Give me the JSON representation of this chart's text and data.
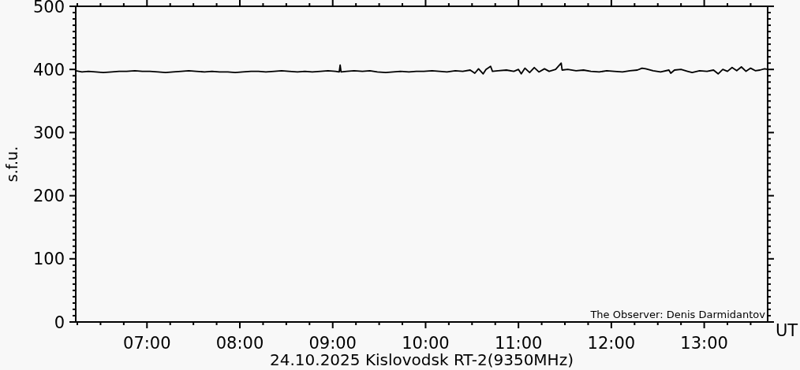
{
  "chart_data": {
    "type": "line",
    "title": "24.10.2025 Kislovodsk RT-2(9350MHz)",
    "xlabel": "UT",
    "ylabel": "s.f.u.",
    "annotations": [
      "The Observer: Denis Darmidantov"
    ],
    "x": [
      6.233,
      6.3,
      6.37,
      6.45,
      6.53,
      6.62,
      6.7,
      6.78,
      6.87,
      6.95,
      7.03,
      7.12,
      7.2,
      7.28,
      7.37,
      7.45,
      7.53,
      7.62,
      7.7,
      7.78,
      7.87,
      7.95,
      8.03,
      8.12,
      8.2,
      8.28,
      8.37,
      8.45,
      8.53,
      8.62,
      8.7,
      8.78,
      8.87,
      8.95,
      9.03,
      9.07,
      9.08,
      9.09,
      9.15,
      9.23,
      9.32,
      9.4,
      9.48,
      9.57,
      9.65,
      9.73,
      9.82,
      9.9,
      9.98,
      10.07,
      10.15,
      10.23,
      10.32,
      10.4,
      10.48,
      10.53,
      10.57,
      10.62,
      10.65,
      10.7,
      10.72,
      10.78,
      10.87,
      10.95,
      11.0,
      11.03,
      11.07,
      11.12,
      11.17,
      11.22,
      11.28,
      11.33,
      11.4,
      11.46,
      11.47,
      11.53,
      11.62,
      11.7,
      11.78,
      11.87,
      11.95,
      12.03,
      12.12,
      12.2,
      12.28,
      12.33,
      12.37,
      12.45,
      12.53,
      12.62,
      12.64,
      12.68,
      12.75,
      12.82,
      12.87,
      12.95,
      13.03,
      13.1,
      13.15,
      13.2,
      13.25,
      13.3,
      13.35,
      13.4,
      13.45,
      13.5,
      13.55,
      13.6,
      13.65,
      13.683
    ],
    "series": [
      {
        "color": "#000000",
        "values": [
          398,
          396,
          397,
          396,
          395,
          396,
          397,
          397,
          398,
          397,
          397,
          396,
          395,
          396,
          397,
          398,
          397,
          396,
          397,
          396,
          396,
          395,
          396,
          397,
          397,
          396,
          397,
          398,
          397,
          396,
          397,
          396,
          397,
          398,
          397,
          396,
          407,
          396,
          397,
          398,
          397,
          398,
          396,
          395,
          396,
          397,
          396,
          397,
          397,
          398,
          397,
          396,
          398,
          397,
          399,
          394,
          401,
          393,
          400,
          405,
          397,
          398,
          399,
          397,
          400,
          393,
          402,
          395,
          403,
          396,
          401,
          397,
          400,
          410,
          399,
          400,
          398,
          399,
          397,
          396,
          398,
          397,
          396,
          398,
          399,
          402,
          401,
          398,
          396,
          399,
          394,
          399,
          400,
          397,
          395,
          398,
          397,
          399,
          393,
          400,
          397,
          403,
          398,
          404,
          397,
          402,
          398,
          399,
          401,
          400
        ]
      }
    ],
    "xlim": [
      6.233,
      13.683
    ],
    "xticks": [
      {
        "value": 6.25,
        "label": null
      },
      {
        "value": 6.5,
        "label": null
      },
      {
        "value": 6.75,
        "label": null
      },
      {
        "value": 7,
        "label": "07:00"
      },
      {
        "value": 7.25,
        "label": null
      },
      {
        "value": 7.5,
        "label": null
      },
      {
        "value": 7.75,
        "label": null
      },
      {
        "value": 8,
        "label": "08:00"
      },
      {
        "value": 8.25,
        "label": null
      },
      {
        "value": 8.5,
        "label": null
      },
      {
        "value": 8.75,
        "label": null
      },
      {
        "value": 9,
        "label": "09:00"
      },
      {
        "value": 9.25,
        "label": null
      },
      {
        "value": 9.5,
        "label": null
      },
      {
        "value": 9.75,
        "label": null
      },
      {
        "value": 10,
        "label": "10:00"
      },
      {
        "value": 10.25,
        "label": null
      },
      {
        "value": 10.5,
        "label": null
      },
      {
        "value": 10.75,
        "label": null
      },
      {
        "value": 11,
        "label": "11:00"
      },
      {
        "value": 11.25,
        "label": null
      },
      {
        "value": 11.5,
        "label": null
      },
      {
        "value": 11.75,
        "label": null
      },
      {
        "value": 12,
        "label": "12:00"
      },
      {
        "value": 12.25,
        "label": null
      },
      {
        "value": 12.5,
        "label": null
      },
      {
        "value": 12.75,
        "label": null
      },
      {
        "value": 13,
        "label": "13:00"
      },
      {
        "value": 13.25,
        "label": null
      },
      {
        "value": 13.5,
        "label": null
      }
    ],
    "ylim": [
      0,
      500
    ],
    "yticks": [
      0,
      {
        "value": 10,
        "label": null
      },
      {
        "value": 20,
        "label": null
      },
      {
        "value": 30,
        "label": null
      },
      {
        "value": 40,
        "label": null
      },
      {
        "value": 50,
        "label": null
      },
      {
        "value": 60,
        "label": null
      },
      {
        "value": 70,
        "label": null
      },
      {
        "value": 80,
        "label": null
      },
      {
        "value": 90,
        "label": null
      },
      100,
      {
        "value": 110,
        "label": null
      },
      {
        "value": 120,
        "label": null
      },
      {
        "value": 130,
        "label": null
      },
      {
        "value": 140,
        "label": null
      },
      {
        "value": 150,
        "label": null
      },
      {
        "value": 160,
        "label": null
      },
      {
        "value": 170,
        "label": null
      },
      {
        "value": 180,
        "label": null
      },
      {
        "value": 190,
        "label": null
      },
      200,
      {
        "value": 210,
        "label": null
      },
      {
        "value": 220,
        "label": null
      },
      {
        "value": 230,
        "label": null
      },
      {
        "value": 240,
        "label": null
      },
      {
        "value": 250,
        "label": null
      },
      {
        "value": 260,
        "label": null
      },
      {
        "value": 270,
        "label": null
      },
      {
        "value": 280,
        "label": null
      },
      {
        "value": 290,
        "label": null
      },
      300,
      {
        "value": 310,
        "label": null
      },
      {
        "value": 320,
        "label": null
      },
      {
        "value": 330,
        "label": null
      },
      {
        "value": 340,
        "label": null
      },
      {
        "value": 350,
        "label": null
      },
      {
        "value": 360,
        "label": null
      },
      {
        "value": 370,
        "label": null
      },
      {
        "value": 380,
        "label": null
      },
      {
        "value": 390,
        "label": null
      },
      400,
      {
        "value": 410,
        "label": null
      },
      {
        "value": 420,
        "label": null
      },
      {
        "value": 430,
        "label": null
      },
      {
        "value": 440,
        "label": null
      },
      {
        "value": 450,
        "label": null
      },
      {
        "value": 460,
        "label": null
      },
      {
        "value": 470,
        "label": null
      },
      {
        "value": 480,
        "label": null
      },
      {
        "value": 490,
        "label": null
      },
      500
    ]
  }
}
